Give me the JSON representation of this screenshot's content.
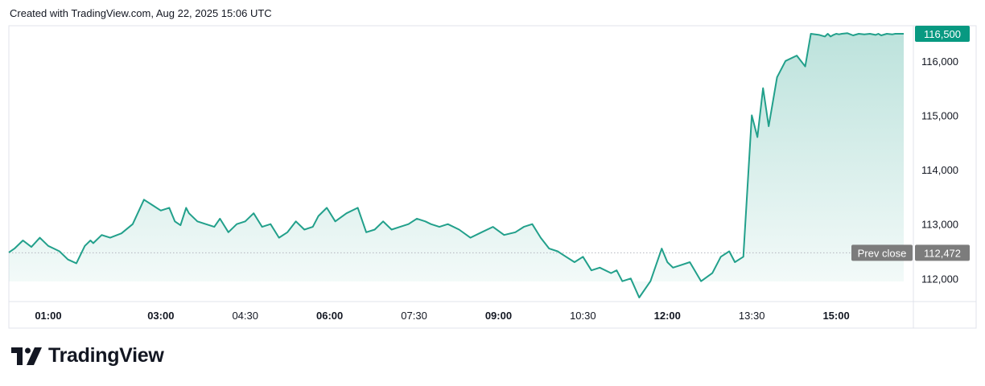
{
  "header": {
    "created_text": "Created with TradingView.com, Aug 22, 2025 15:06 UTC"
  },
  "brand": {
    "name": "TradingView",
    "logo_icon": "tradingview-logo-icon"
  },
  "colors": {
    "line": "#22a08b",
    "badge": "#089981",
    "prev_close_badge": "#7c7c7c",
    "text": "#131722"
  },
  "chart_data": {
    "type": "area",
    "xlim": [
      0.3,
      16.3
    ],
    "ylim": [
      111650,
      116500
    ],
    "x_ticks": [
      {
        "label": "01:00",
        "t": 1.0,
        "bold": true
      },
      {
        "label": "03:00",
        "t": 3.0,
        "bold": true
      },
      {
        "label": "04:30",
        "t": 4.5,
        "bold": false
      },
      {
        "label": "06:00",
        "t": 6.0,
        "bold": true
      },
      {
        "label": "07:30",
        "t": 7.5,
        "bold": false
      },
      {
        "label": "09:00",
        "t": 9.0,
        "bold": true
      },
      {
        "label": "10:30",
        "t": 10.5,
        "bold": false
      },
      {
        "label": "12:00",
        "t": 12.0,
        "bold": true
      },
      {
        "label": "13:30",
        "t": 13.5,
        "bold": false
      },
      {
        "label": "15:00",
        "t": 15.0,
        "bold": true
      }
    ],
    "y_ticks": [
      {
        "label": "112,000",
        "value": 112000
      },
      {
        "label": "113,000",
        "value": 113000
      },
      {
        "label": "114,000",
        "value": 114000
      },
      {
        "label": "115,000",
        "value": 115000
      },
      {
        "label": "116,000",
        "value": 116000
      }
    ],
    "last_price": {
      "label": "116,500",
      "value": 116500
    },
    "prev_close": {
      "label": "Prev close",
      "value_label": "112,472",
      "value": 112472
    },
    "series": [
      {
        "t": [
          0.3,
          0.4,
          0.55,
          0.7,
          0.85,
          1.0,
          1.1,
          1.2,
          1.35,
          1.5,
          1.65,
          1.75,
          1.8,
          1.95,
          2.1,
          2.3,
          2.5,
          2.7,
          2.85,
          3.0,
          3.15,
          3.25,
          3.35,
          3.45,
          3.5,
          3.65,
          3.8,
          3.95,
          4.05,
          4.2,
          4.35,
          4.5,
          4.65,
          4.8,
          4.95,
          5.1,
          5.25,
          5.4,
          5.55,
          5.7,
          5.8,
          5.95,
          6.1,
          6.3,
          6.5,
          6.65,
          6.8,
          6.95,
          7.1,
          7.25,
          7.4,
          7.55,
          7.7,
          7.8,
          7.95,
          8.1,
          8.3,
          8.5,
          8.7,
          8.9,
          9.1,
          9.3,
          9.45,
          9.6,
          9.75,
          9.9,
          10.05,
          10.2,
          10.35,
          10.5,
          10.65,
          10.8,
          11.0,
          11.1,
          11.2,
          11.35,
          11.5,
          11.7,
          11.9,
          12.0,
          12.1,
          12.25,
          12.4,
          12.6,
          12.8,
          12.95,
          13.1,
          13.2,
          13.35,
          13.5,
          13.6,
          13.7,
          13.8,
          13.95,
          14.1,
          14.3,
          14.45,
          14.55,
          14.7,
          14.8,
          14.85,
          14.9,
          14.95,
          15.0,
          15.05,
          15.1,
          15.2,
          15.3,
          15.4,
          15.5,
          15.6,
          15.7,
          15.75,
          15.8,
          15.9,
          16.0,
          16.05,
          16.1,
          16.15,
          16.2
        ],
        "values": [
          112480,
          112550,
          112700,
          112580,
          112750,
          112600,
          112550,
          112500,
          112350,
          112280,
          112600,
          112700,
          112650,
          112800,
          112750,
          112830,
          113000,
          113450,
          113350,
          113250,
          113300,
          113050,
          112980,
          113300,
          113200,
          113050,
          113000,
          112950,
          113100,
          112850,
          113000,
          113050,
          113200,
          112950,
          113000,
          112750,
          112850,
          113050,
          112900,
          112950,
          113150,
          113300,
          113050,
          113200,
          113300,
          112850,
          112900,
          113050,
          112900,
          112950,
          113000,
          113100,
          113050,
          113000,
          112950,
          113000,
          112900,
          112750,
          112850,
          112950,
          112800,
          112850,
          112950,
          113000,
          112750,
          112550,
          112500,
          112400,
          112300,
          112400,
          112150,
          112200,
          112100,
          112150,
          111950,
          112000,
          111650,
          111950,
          112550,
          112300,
          112200,
          112250,
          112300,
          111950,
          112100,
          112400,
          112500,
          112300,
          112400,
          115000,
          114600,
          115500,
          114800,
          115700,
          116000,
          116100,
          115900,
          116500,
          116480,
          116450,
          116500,
          116450,
          116480,
          116500,
          116490,
          116500,
          116510,
          116470,
          116500,
          116490,
          116500,
          116480,
          116500,
          116470,
          116500,
          116490,
          116500,
          116500,
          116500,
          116500
        ]
      }
    ]
  }
}
